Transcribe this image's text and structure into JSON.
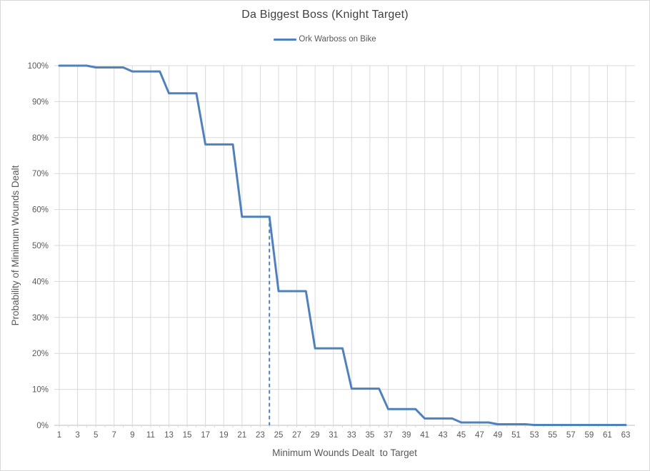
{
  "chart_data": {
    "type": "line",
    "title": "Da Biggest Boss (Knight Target)",
    "xlabel": "Minimum Wounds Dealt  to Target",
    "ylabel": "Probability of Minimum Wounds Dealt",
    "legend_position": "top",
    "grid": true,
    "ylim": [
      0,
      100
    ],
    "ytick_labels": [
      "0%",
      "10%",
      "20%",
      "30%",
      "40%",
      "50%",
      "60%",
      "70%",
      "80%",
      "90%",
      "100%"
    ],
    "xtick_labels": [
      1,
      3,
      5,
      7,
      9,
      11,
      13,
      15,
      17,
      19,
      21,
      23,
      25,
      27,
      29,
      31,
      33,
      35,
      37,
      39,
      41,
      43,
      45,
      47,
      49,
      51,
      53,
      55,
      57,
      59,
      61,
      63
    ],
    "x": [
      1,
      2,
      3,
      4,
      5,
      6,
      7,
      8,
      9,
      10,
      11,
      12,
      13,
      14,
      15,
      16,
      17,
      18,
      19,
      20,
      21,
      22,
      23,
      24,
      25,
      26,
      27,
      28,
      29,
      30,
      31,
      32,
      33,
      34,
      35,
      36,
      37,
      38,
      39,
      40,
      41,
      42,
      43,
      44,
      45,
      46,
      47,
      48,
      49,
      50,
      51,
      52,
      53,
      54,
      55,
      56,
      57,
      58,
      59,
      60,
      61,
      62,
      63
    ],
    "series": [
      {
        "name": "Ork Warboss on Bike",
        "values_pct": [
          100,
          100,
          100,
          100,
          99.5,
          99.5,
          99.5,
          99.5,
          98.4,
          98.4,
          98.4,
          98.4,
          92.3,
          92.3,
          92.3,
          92.3,
          78.1,
          78.1,
          78.1,
          78.1,
          58,
          58,
          58,
          58,
          37.3,
          37.3,
          37.3,
          37.3,
          21.4,
          21.4,
          21.4,
          21.4,
          10.2,
          10.2,
          10.2,
          10.2,
          4.5,
          4.5,
          4.5,
          4.5,
          1.9,
          1.9,
          1.9,
          1.9,
          0.8,
          0.8,
          0.8,
          0.8,
          0.3,
          0.3,
          0.3,
          0.3,
          0.1,
          0.1,
          0.1,
          0.1,
          0.1,
          0.1,
          0.1,
          0.1,
          0.1,
          0.1,
          0.1
        ]
      }
    ],
    "reference_line": {
      "x": 24,
      "y_top_pct": 58,
      "style": "dashed"
    },
    "colors": {
      "series": "#4f81bd",
      "gridline": "#d9d9d9",
      "axis": "#bfbfbf",
      "tick_text": "#595959",
      "title_text": "#3f3f3f"
    }
  }
}
